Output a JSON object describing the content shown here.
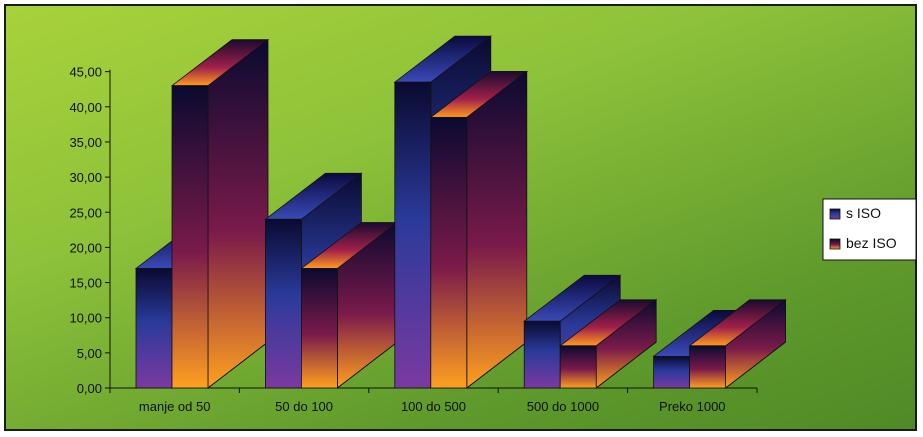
{
  "chart_data": {
    "type": "bar",
    "categories": [
      "manje od 50",
      "50 do 100",
      "100 do 500",
      "500 do 1000",
      "Preko 1000"
    ],
    "series": [
      {
        "name": "s  ISO",
        "values": [
          17,
          24,
          43.5,
          9.5,
          4.5
        ]
      },
      {
        "name": "bez ISO",
        "values": [
          43,
          17,
          38.5,
          6,
          6
        ]
      }
    ],
    "ylim": [
      0,
      45
    ],
    "yticks": [
      "0,00",
      "5,00",
      "10,00",
      "15,00",
      "20,00",
      "25,00",
      "30,00",
      "35,00",
      "40,00",
      "45,00"
    ],
    "legend_position": "right",
    "grid": false,
    "colors": {
      "background": "#8ec23a",
      "s_iso_top": "#0a0a30",
      "s_iso_mid": "#2a3a9a",
      "s_iso_bottom": "#7a3aa0",
      "bez_iso_top": "#0a0a30",
      "bez_iso_mid": "#7a1a4a",
      "bez_iso_bottom": "#ffa020"
    }
  }
}
